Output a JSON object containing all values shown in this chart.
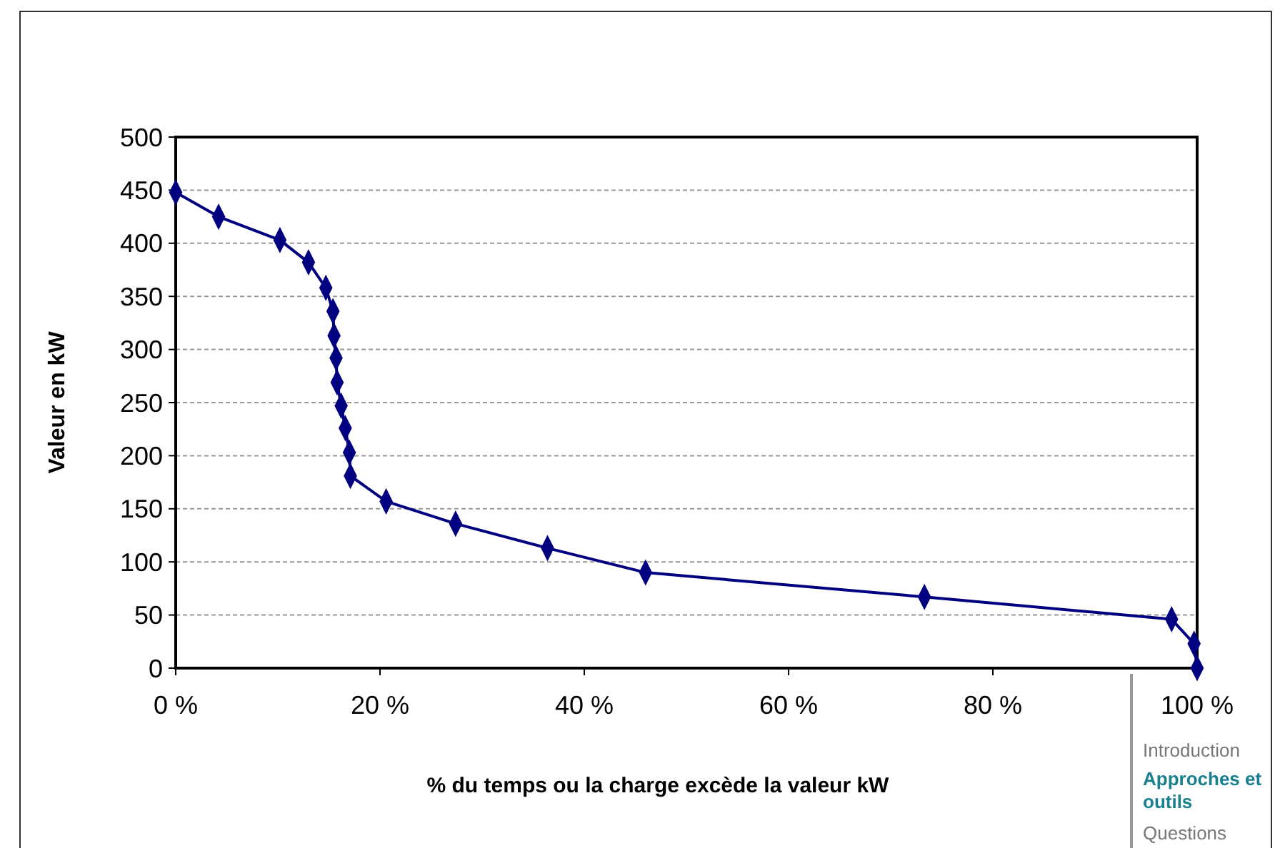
{
  "chart_data": {
    "type": "line",
    "xlabel": "% du temps ou la charge excède la valeur kW",
    "ylabel": "Valeur en kW",
    "x": [
      0,
      4.2,
      10.2,
      13,
      14.7,
      15.4,
      15.5,
      15.7,
      15.8,
      16.2,
      16.6,
      17,
      17.1,
      20.6,
      27.4,
      36.4,
      46,
      73.3,
      97.5,
      99.7,
      100
    ],
    "series": [
      {
        "color": "#000080",
        "values": [
          448,
          425,
          403,
          382,
          358,
          336,
          313,
          292,
          269,
          247,
          226,
          203,
          181,
          157,
          136,
          113,
          90,
          67,
          46,
          23,
          0
        ]
      }
    ],
    "xlim": [
      0,
      100
    ],
    "xticks": [
      {
        "value": 0,
        "label": "0 %"
      },
      {
        "value": 20,
        "label": "20 %"
      },
      {
        "value": 40,
        "label": "40 %"
      },
      {
        "value": 60,
        "label": "60 %"
      },
      {
        "value": 80,
        "label": "80 %"
      },
      {
        "value": 100,
        "label": "100 %"
      }
    ],
    "ylim": [
      0,
      500
    ],
    "yticks": [
      0,
      50,
      100,
      150,
      200,
      250,
      300,
      350,
      400,
      450,
      500
    ],
    "grid": "y",
    "marker": "diamond",
    "line_style": "solid",
    "annotations": [
      "Introduction",
      "Approches et outils",
      "Questions"
    ]
  }
}
